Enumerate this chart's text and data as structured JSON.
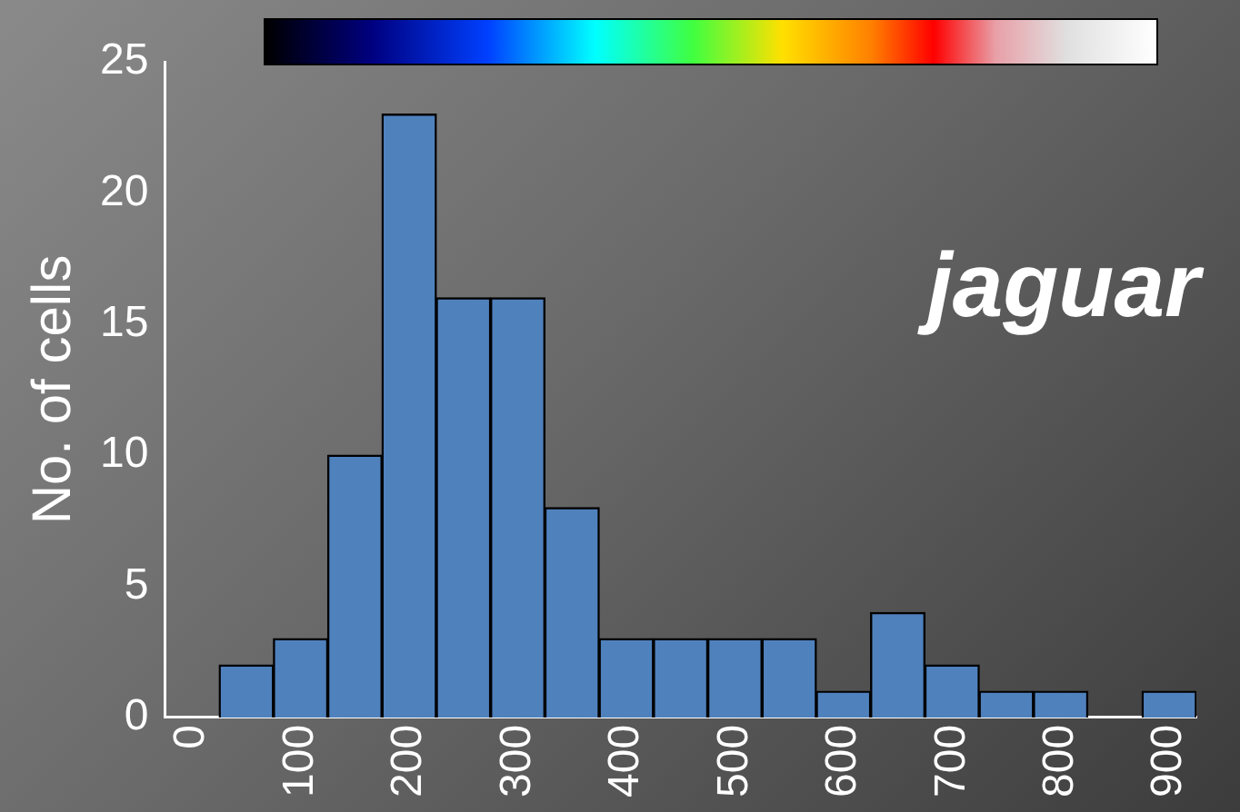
{
  "chart_data": {
    "type": "bar",
    "categories": [
      "0",
      null,
      "100",
      null,
      "200",
      null,
      "300",
      null,
      "400",
      null,
      "500",
      null,
      "600",
      null,
      "700",
      null,
      "800",
      null,
      "900"
    ],
    "values": [
      0,
      2,
      3,
      10,
      23,
      16,
      16,
      8,
      3,
      3,
      3,
      3,
      1,
      4,
      2,
      1,
      1,
      0,
      1
    ],
    "color": "#4f81bd",
    "ylabel": "No. of cells",
    "ylim": [
      0,
      25
    ],
    "yticks": [
      0,
      5,
      10,
      15,
      20,
      25
    ],
    "annotations": [
      "jaguar"
    ],
    "grid": false,
    "legend": false
  }
}
